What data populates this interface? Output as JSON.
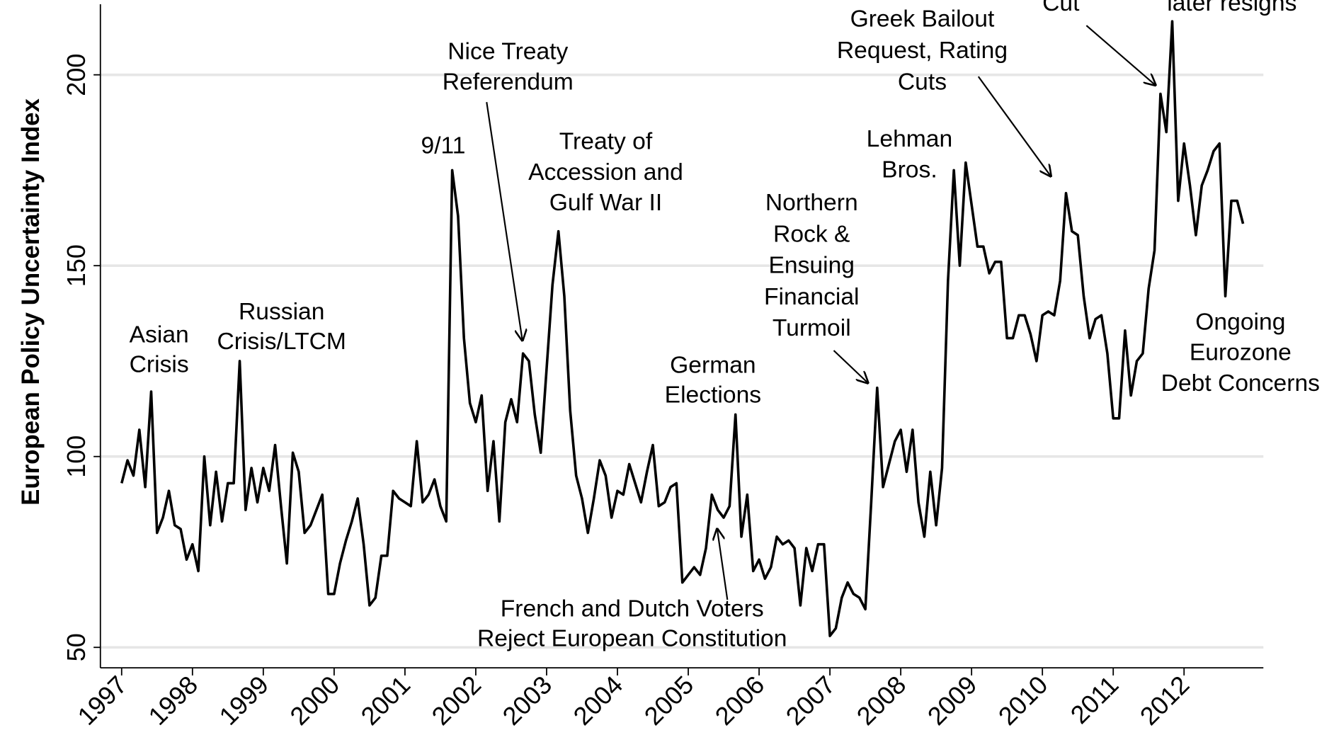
{
  "chart_data": {
    "type": "line",
    "y_label": "European Policy Uncertainty Index",
    "x": [
      1997,
      1997.083,
      1997.167,
      1997.25,
      1997.333,
      1997.417,
      1997.5,
      1997.583,
      1997.667,
      1997.75,
      1997.833,
      1997.917,
      1998,
      1998.083,
      1998.167,
      1998.25,
      1998.333,
      1998.417,
      1998.5,
      1998.583,
      1998.667,
      1998.75,
      1998.833,
      1998.917,
      1999,
      1999.083,
      1999.167,
      1999.25,
      1999.333,
      1999.417,
      1999.5,
      1999.583,
      1999.667,
      1999.75,
      1999.833,
      1999.917,
      2000,
      2000.083,
      2000.167,
      2000.25,
      2000.333,
      2000.417,
      2000.5,
      2000.583,
      2000.667,
      2000.75,
      2000.833,
      2000.917,
      2001,
      2001.083,
      2001.167,
      2001.25,
      2001.333,
      2001.417,
      2001.5,
      2001.583,
      2001.667,
      2001.75,
      2001.833,
      2001.917,
      2002,
      2002.083,
      2002.167,
      2002.25,
      2002.333,
      2002.417,
      2002.5,
      2002.583,
      2002.667,
      2002.75,
      2002.833,
      2002.917,
      2003,
      2003.083,
      2003.167,
      2003.25,
      2003.333,
      2003.417,
      2003.5,
      2003.583,
      2003.667,
      2003.75,
      2003.833,
      2003.917,
      2004,
      2004.083,
      2004.167,
      2004.25,
      2004.333,
      2004.417,
      2004.5,
      2004.583,
      2004.667,
      2004.75,
      2004.833,
      2004.917,
      2005,
      2005.083,
      2005.167,
      2005.25,
      2005.333,
      2005.417,
      2005.5,
      2005.583,
      2005.667,
      2005.75,
      2005.833,
      2005.917,
      2006,
      2006.083,
      2006.167,
      2006.25,
      2006.333,
      2006.417,
      2006.5,
      2006.583,
      2006.667,
      2006.75,
      2006.833,
      2006.917,
      2007,
      2007.083,
      2007.167,
      2007.25,
      2007.333,
      2007.417,
      2007.5,
      2007.583,
      2007.667,
      2007.75,
      2007.833,
      2007.917,
      2008,
      2008.083,
      2008.167,
      2008.25,
      2008.333,
      2008.417,
      2008.5,
      2008.583,
      2008.667,
      2008.75,
      2008.833,
      2008.917,
      2009,
      2009.083,
      2009.167,
      2009.25,
      2009.333,
      2009.417,
      2009.5,
      2009.583,
      2009.667,
      2009.75,
      2009.833,
      2009.917,
      2010,
      2010.083,
      2010.167,
      2010.25,
      2010.333,
      2010.417,
      2010.5,
      2010.583,
      2010.667,
      2010.75,
      2010.833,
      2010.917,
      2011,
      2011.083,
      2011.167,
      2011.25,
      2011.333,
      2011.417,
      2011.5,
      2011.583,
      2011.667,
      2011.75,
      2011.833,
      2011.917,
      2012,
      2012.083,
      2012.167,
      2012.25,
      2012.333,
      2012.417,
      2012.5,
      2012.583,
      2012.667,
      2012.75,
      2012.833
    ],
    "series": [
      {
        "color": "#000000",
        "values": [
          93,
          99,
          95,
          107,
          92,
          117,
          80,
          84,
          91,
          82,
          81,
          73,
          77,
          70,
          100,
          82,
          96,
          83,
          93,
          93,
          125,
          86,
          97,
          88,
          97,
          91,
          103,
          87,
          72,
          101,
          96,
          80,
          82,
          86,
          90,
          64,
          64,
          72,
          78,
          83,
          89,
          77,
          61,
          63,
          74,
          74,
          91,
          89,
          88,
          87,
          104,
          88,
          90,
          94,
          87,
          83,
          175,
          163,
          131,
          114,
          109,
          116,
          91,
          104,
          83,
          109,
          115,
          109,
          127,
          125,
          111,
          101,
          123,
          145,
          159,
          142,
          112,
          95,
          89,
          80,
          89,
          99,
          95,
          84,
          91,
          90,
          98,
          93,
          88,
          96,
          103,
          87,
          88,
          92,
          93,
          67,
          69,
          71,
          69,
          76,
          90,
          86,
          84,
          87,
          111,
          79,
          90,
          70,
          73,
          68,
          71,
          79,
          77,
          78,
          76,
          61,
          76,
          70,
          77,
          77,
          53,
          55,
          63,
          67,
          64,
          63,
          60,
          88,
          118,
          92,
          98,
          104,
          107,
          96,
          107,
          88,
          79,
          96,
          82,
          97,
          146,
          175,
          150,
          177,
          166,
          155,
          155,
          148,
          151,
          151,
          131,
          131,
          137,
          137,
          132,
          125,
          137,
          138,
          137,
          146,
          169,
          159,
          158,
          142,
          131,
          136,
          137,
          127,
          110,
          110,
          133,
          116,
          125,
          127,
          144,
          154,
          195,
          185,
          214,
          167,
          182,
          171,
          158,
          171,
          175,
          180,
          182,
          142,
          167,
          167,
          161
        ]
      }
    ],
    "xlim": [
      1996.7,
      2013.12
    ],
    "xticks": [
      1997,
      1998,
      1999,
      2000,
      2001,
      2002,
      2003,
      2004,
      2005,
      2006,
      2007,
      2008,
      2009,
      2010,
      2011,
      2012
    ],
    "ylim": [
      44.65,
      219.6
    ],
    "yticks": [
      50,
      100,
      150,
      200
    ],
    "grid": true,
    "annotations": [
      {
        "lines": [
          "Asian",
          "Crisis"
        ]
      },
      {
        "lines": [
          "Russian",
          "Crisis/LTCM"
        ]
      },
      {
        "lines": [
          "9/11"
        ]
      },
      {
        "lines": [
          "Nice Treaty",
          "Referendum"
        ]
      },
      {
        "lines": [
          "Treaty of",
          "Accession and",
          "Gulf War II"
        ]
      },
      {
        "lines": [
          "French and Dutch Voters",
          "Reject European Constitution"
        ]
      },
      {
        "lines": [
          "German",
          "Elections"
        ]
      },
      {
        "lines": [
          "Northern",
          "Rock &",
          "Ensuing",
          "Financial",
          "Turmoil"
        ]
      },
      {
        "lines": [
          "Lehman",
          "Bros."
        ]
      },
      {
        "lines": [
          "Greek Bailout",
          "Request, Rating",
          "Cuts"
        ]
      },
      {
        "lines": [
          "Cut"
        ]
      },
      {
        "lines": [
          "later resigns"
        ]
      },
      {
        "lines": [
          "Ongoing",
          "Eurozone",
          "Debt Concerns"
        ]
      }
    ]
  }
}
